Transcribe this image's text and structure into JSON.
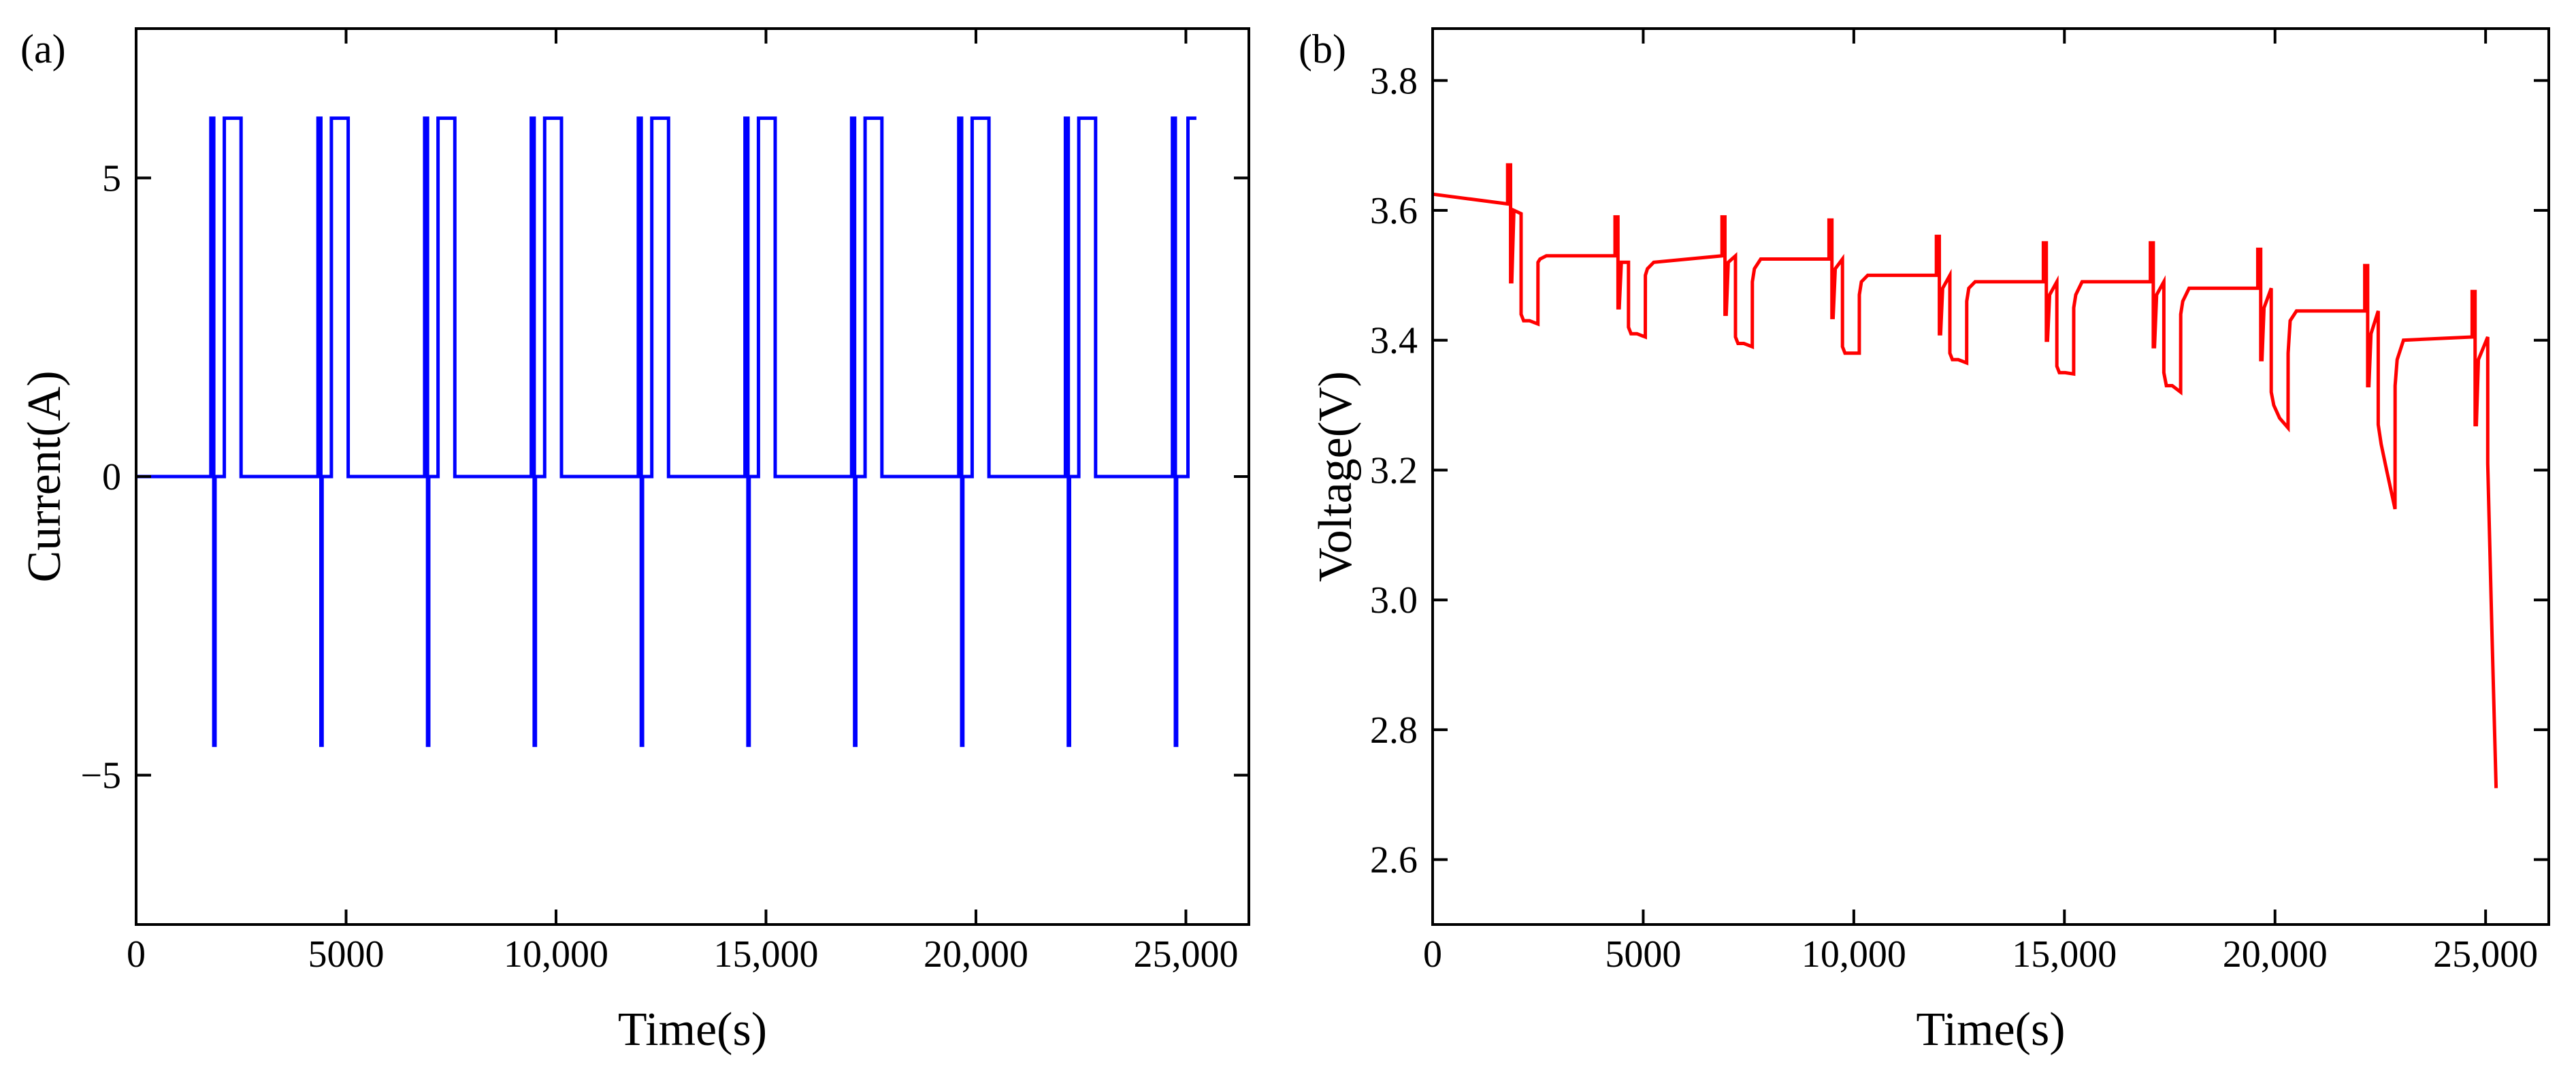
{
  "chart_data": [
    {
      "type": "line",
      "panel_label": "(a)",
      "title": "",
      "xlabel": "Time(s)",
      "ylabel": "Current(A)",
      "xlim": [
        0,
        26500
      ],
      "ylim": [
        -7.5,
        7.5
      ],
      "xticks": [
        0,
        5000,
        10000,
        15000,
        20000,
        25000
      ],
      "xtick_labels": [
        "0",
        "5000",
        "10,000",
        "15,000",
        "20,000",
        "25,000"
      ],
      "yticks": [
        -5,
        0,
        5
      ],
      "ytick_labels": [
        "−5",
        "0",
        "5"
      ],
      "grid": false,
      "series": [
        {
          "name": "Current",
          "color": "#0000ff",
          "x": [
            0,
            1780,
            1780,
            1850,
            1850,
            1880,
            1880,
            2100,
            2100,
            2500,
            2500,
            4330,
            4330,
            4400,
            4400,
            4430,
            4430,
            4650,
            4650,
            5050,
            5050,
            6870,
            6870,
            6940,
            6940,
            6970,
            6970,
            7190,
            7190,
            7590,
            7590,
            9410,
            9410,
            9480,
            9480,
            9510,
            9510,
            9730,
            9730,
            10130,
            10130,
            11960,
            11960,
            12030,
            12030,
            12060,
            12060,
            12280,
            12280,
            12680,
            12680,
            14500,
            14500,
            14570,
            14570,
            14600,
            14600,
            14820,
            14820,
            15220,
            15220,
            17040,
            17040,
            17110,
            17110,
            17140,
            17140,
            17360,
            17360,
            17760,
            17760,
            19590,
            19590,
            19660,
            19660,
            19690,
            19690,
            19910,
            19910,
            20310,
            20310,
            22130,
            22130,
            22200,
            22200,
            22230,
            22230,
            22450,
            22450,
            22850,
            22850,
            24680,
            24680,
            24750,
            24750,
            24780,
            24780,
            25050,
            25050,
            25250
          ],
          "values": [
            0,
            0,
            6,
            6,
            -4.5,
            -4.5,
            0,
            0,
            6,
            6,
            0,
            0,
            6,
            6,
            -4.5,
            -4.5,
            0,
            0,
            6,
            6,
            0,
            0,
            6,
            6,
            -4.5,
            -4.5,
            0,
            0,
            6,
            6,
            0,
            0,
            6,
            6,
            -4.5,
            -4.5,
            0,
            0,
            6,
            6,
            0,
            0,
            6,
            6,
            -4.5,
            -4.5,
            0,
            0,
            6,
            6,
            0,
            0,
            6,
            6,
            -4.5,
            -4.5,
            0,
            0,
            6,
            6,
            0,
            0,
            6,
            6,
            -4.5,
            -4.5,
            0,
            0,
            6,
            6,
            0,
            0,
            6,
            6,
            -4.5,
            -4.5,
            0,
            0,
            6,
            6,
            0,
            0,
            6,
            6,
            -4.5,
            -4.5,
            0,
            0,
            6,
            6,
            0,
            0,
            6,
            6,
            -4.5,
            -4.5,
            0,
            0,
            6,
            6
          ]
        }
      ]
    },
    {
      "type": "line",
      "panel_label": "(b)",
      "title": "",
      "xlabel": "Time(s)",
      "ylabel": "Voltage(V)",
      "xlim": [
        0,
        26500
      ],
      "ylim": [
        2.5,
        3.88
      ],
      "xticks": [
        0,
        5000,
        10000,
        15000,
        20000,
        25000
      ],
      "xtick_labels": [
        "0",
        "5000",
        "10,000",
        "15,000",
        "20,000",
        "25,000"
      ],
      "yticks": [
        2.6,
        2.8,
        3.0,
        3.2,
        3.4,
        3.6,
        3.8
      ],
      "ytick_labels": [
        "2.6",
        "2.8",
        "3.0",
        "3.2",
        "3.4",
        "3.6",
        "3.8"
      ],
      "grid": false,
      "series": [
        {
          "name": "Voltage",
          "color": "#ff0000",
          "x": [
            0,
            1780,
            1781,
            1850,
            1851,
            1880,
            1930,
            2100,
            2101,
            2160,
            2300,
            2500,
            2501,
            2550,
            2700,
            4330,
            4331,
            4400,
            4401,
            4430,
            4480,
            4650,
            4651,
            4710,
            4850,
            5050,
            5051,
            5100,
            5250,
            6870,
            6871,
            6940,
            6941,
            6970,
            7020,
            7190,
            7191,
            7250,
            7390,
            7590,
            7591,
            7640,
            7790,
            9410,
            9411,
            9480,
            9481,
            9510,
            9560,
            9730,
            9731,
            9790,
            9930,
            10130,
            10131,
            10180,
            10330,
            11960,
            11961,
            12030,
            12031,
            12060,
            12110,
            12280,
            12281,
            12340,
            12480,
            12680,
            12681,
            12730,
            12880,
            14500,
            14501,
            14570,
            14571,
            14600,
            14650,
            14820,
            14821,
            14880,
            15020,
            15220,
            15221,
            15270,
            15420,
            17040,
            17041,
            17110,
            17111,
            17140,
            17190,
            17360,
            17361,
            17420,
            17560,
            17760,
            17761,
            17810,
            17960,
            19590,
            19591,
            19660,
            19661,
            19690,
            19740,
            19910,
            19911,
            19970,
            20110,
            20310,
            20311,
            20360,
            20510,
            22130,
            22131,
            22200,
            22201,
            22230,
            22280,
            22450,
            22451,
            22520,
            22650,
            22850,
            22851,
            22900,
            23050,
            24680,
            24681,
            24750,
            24751,
            24780,
            24830,
            25050,
            25051,
            25150,
            25250
          ],
          "values": [
            3.625,
            3.61,
            3.67,
            3.67,
            3.49,
            3.49,
            3.6,
            3.595,
            3.44,
            3.43,
            3.43,
            3.425,
            3.52,
            3.525,
            3.53,
            3.53,
            3.59,
            3.59,
            3.45,
            3.45,
            3.52,
            3.52,
            3.42,
            3.41,
            3.41,
            3.405,
            3.5,
            3.51,
            3.52,
            3.53,
            3.59,
            3.59,
            3.44,
            3.44,
            3.52,
            3.53,
            3.405,
            3.395,
            3.395,
            3.39,
            3.49,
            3.51,
            3.525,
            3.525,
            3.585,
            3.585,
            3.435,
            3.435,
            3.51,
            3.525,
            3.39,
            3.38,
            3.38,
            3.38,
            3.47,
            3.49,
            3.5,
            3.5,
            3.56,
            3.56,
            3.41,
            3.41,
            3.48,
            3.5,
            3.38,
            3.37,
            3.37,
            3.365,
            3.46,
            3.48,
            3.49,
            3.49,
            3.55,
            3.55,
            3.4,
            3.4,
            3.47,
            3.49,
            3.36,
            3.35,
            3.35,
            3.348,
            3.45,
            3.47,
            3.49,
            3.49,
            3.55,
            3.55,
            3.39,
            3.39,
            3.47,
            3.49,
            3.35,
            3.33,
            3.33,
            3.32,
            3.44,
            3.46,
            3.48,
            3.48,
            3.54,
            3.54,
            3.37,
            3.37,
            3.45,
            3.48,
            3.32,
            3.3,
            3.28,
            3.265,
            3.38,
            3.43,
            3.445,
            3.445,
            3.515,
            3.515,
            3.33,
            3.33,
            3.41,
            3.445,
            3.27,
            3.24,
            3.2,
            3.14,
            3.33,
            3.37,
            3.4,
            3.405,
            3.475,
            3.475,
            3.27,
            3.27,
            3.37,
            3.405,
            3.21,
            2.95,
            2.71
          ]
        }
      ]
    }
  ]
}
